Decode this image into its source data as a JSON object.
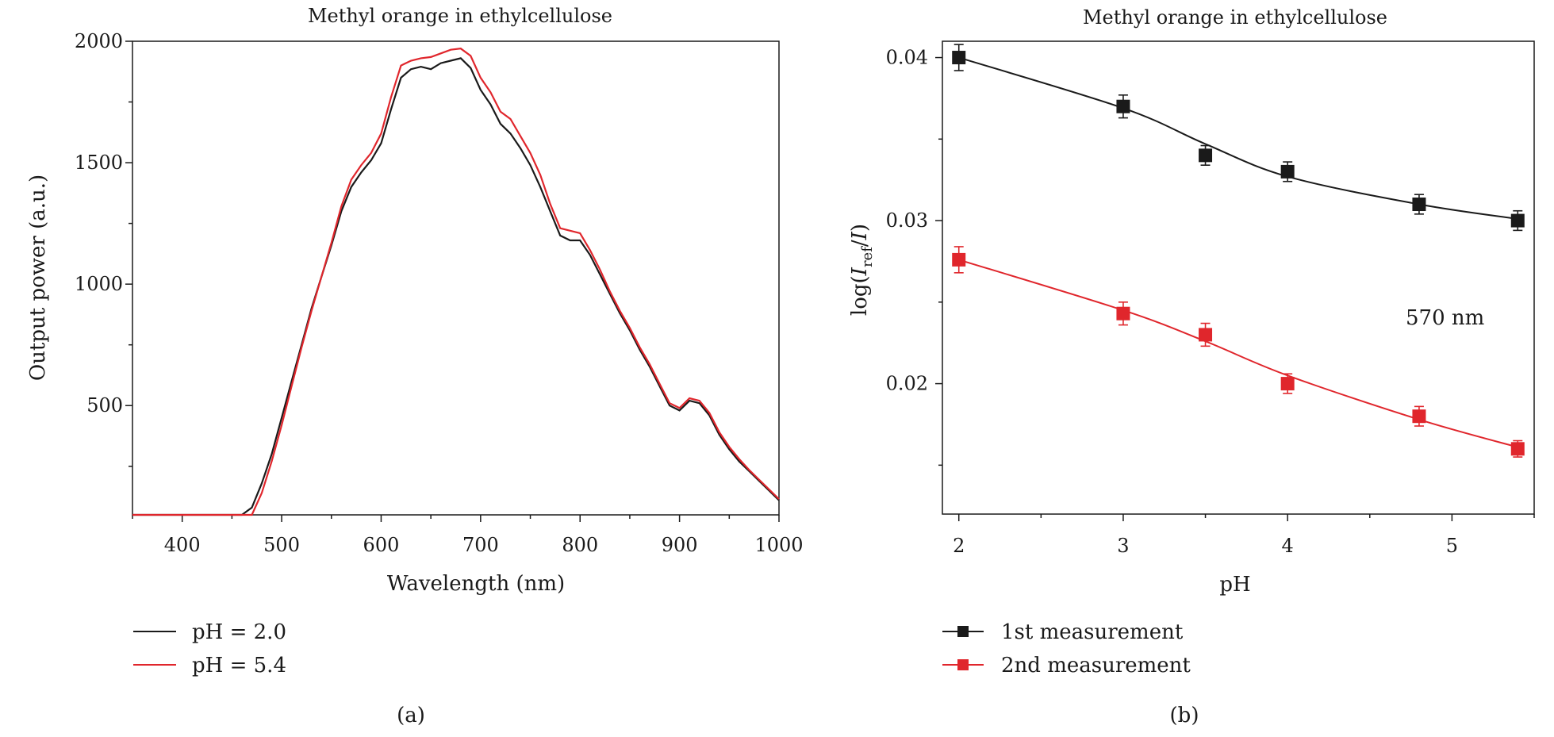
{
  "chart_data": [
    {
      "panel_label": "(a)",
      "type": "line",
      "title": "Methyl orange in ethylcellulose",
      "xlabel": "Wavelength (nm)",
      "ylabel": "Output power (a.u.)",
      "xlim": [
        350,
        1000
      ],
      "ylim": [
        50,
        2000
      ],
      "xticks": [
        400,
        500,
        600,
        700,
        800,
        900,
        1000
      ],
      "yticks": [
        500,
        1000,
        1500,
        2000
      ],
      "grid": false,
      "legend_position": "bottom-left, below axes",
      "series": [
        {
          "name": "pH = 2.0",
          "color": "#1a1a1a",
          "x": [
            350,
            460,
            470,
            480,
            490,
            500,
            510,
            520,
            530,
            540,
            550,
            560,
            570,
            580,
            590,
            600,
            610,
            620,
            630,
            640,
            650,
            660,
            670,
            680,
            690,
            700,
            710,
            720,
            730,
            740,
            750,
            760,
            770,
            780,
            790,
            800,
            810,
            820,
            830,
            840,
            850,
            860,
            870,
            880,
            890,
            900,
            910,
            920,
            930,
            940,
            950,
            960,
            970,
            980,
            990,
            1000
          ],
          "y": [
            50,
            50,
            80,
            180,
            300,
            450,
            600,
            750,
            900,
            1030,
            1160,
            1300,
            1400,
            1460,
            1510,
            1580,
            1720,
            1850,
            1885,
            1895,
            1885,
            1910,
            1920,
            1930,
            1890,
            1800,
            1740,
            1660,
            1620,
            1560,
            1490,
            1400,
            1300,
            1200,
            1180,
            1180,
            1120,
            1040,
            960,
            880,
            810,
            730,
            660,
            580,
            500,
            480,
            520,
            510,
            460,
            380,
            320,
            270,
            230,
            190,
            150,
            110
          ]
        },
        {
          "name": "pH = 5.4",
          "color": "#e0262c",
          "x": [
            350,
            470,
            480,
            490,
            500,
            510,
            520,
            530,
            540,
            550,
            560,
            570,
            580,
            590,
            600,
            610,
            620,
            630,
            640,
            650,
            660,
            670,
            680,
            690,
            700,
            710,
            720,
            730,
            740,
            750,
            760,
            770,
            780,
            790,
            800,
            810,
            820,
            830,
            840,
            850,
            860,
            870,
            880,
            890,
            900,
            910,
            920,
            930,
            940,
            950,
            960,
            970,
            980,
            990,
            1000
          ],
          "y": [
            50,
            50,
            140,
            270,
            420,
            580,
            740,
            890,
            1030,
            1170,
            1320,
            1430,
            1490,
            1540,
            1620,
            1770,
            1900,
            1920,
            1930,
            1935,
            1950,
            1965,
            1970,
            1940,
            1850,
            1790,
            1710,
            1680,
            1610,
            1540,
            1450,
            1330,
            1230,
            1220,
            1210,
            1140,
            1060,
            970,
            890,
            820,
            740,
            670,
            590,
            510,
            490,
            530,
            520,
            470,
            390,
            330,
            280,
            235,
            195,
            155,
            115
          ]
        }
      ]
    },
    {
      "panel_label": "(b)",
      "type": "scatter",
      "title": "Methyl orange in ethylcellulose",
      "xlabel": "pH",
      "ylabel_prefix": "log(",
      "ylabel_I": "I",
      "ylabel_sub": "ref",
      "ylabel_slash": "/",
      "ylabel_I2": "I",
      "ylabel_suffix": ")",
      "annotation": "570 nm",
      "xlim": [
        1.9,
        5.5
      ],
      "ylim": [
        0.012,
        0.041
      ],
      "xticks": [
        2,
        3,
        4,
        5
      ],
      "ytick_labels": [
        "0.02",
        "0.03",
        "0.04"
      ],
      "yticks": [
        0.02,
        0.03,
        0.04
      ],
      "grid": false,
      "legend_position": "bottom-left, below axes",
      "series": [
        {
          "name": "1st measurement",
          "color": "#1a1a1a",
          "x": [
            2.0,
            3.0,
            3.5,
            4.0,
            4.8,
            5.4
          ],
          "y": [
            0.04,
            0.037,
            0.034,
            0.033,
            0.031,
            0.03
          ],
          "error": [
            0.0008,
            0.0007,
            0.0006,
            0.0006,
            0.0006,
            0.0006
          ],
          "fit_y": [
            0.04,
            0.0369,
            0.0347,
            0.0327,
            0.031,
            0.0301
          ]
        },
        {
          "name": "2nd measurement",
          "color": "#e0262c",
          "x": [
            2.0,
            3.0,
            3.5,
            4.0,
            4.8,
            5.4
          ],
          "y": [
            0.0276,
            0.0243,
            0.023,
            0.02,
            0.018,
            0.016
          ],
          "error": [
            0.0008,
            0.0007,
            0.0007,
            0.0006,
            0.0006,
            0.0005
          ],
          "fit_y": [
            0.0276,
            0.0245,
            0.0226,
            0.0205,
            0.0178,
            0.0161
          ]
        }
      ]
    }
  ]
}
